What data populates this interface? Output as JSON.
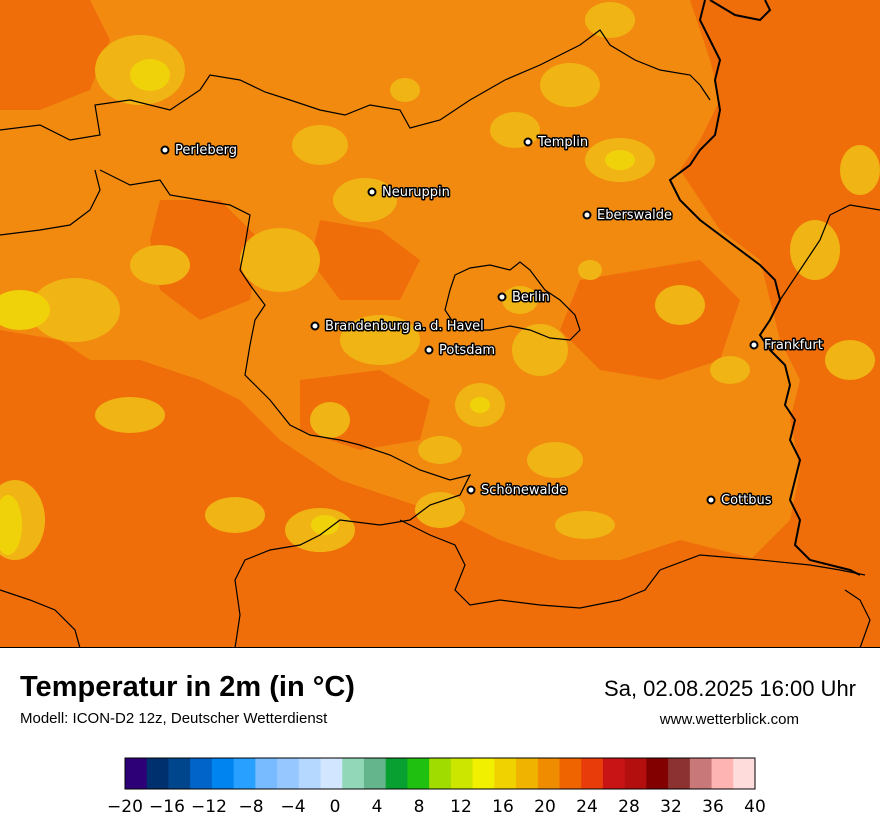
{
  "title": "Temperatur in 2m (in °C)",
  "subtitle": "Modell: ICON-D2 12z, Deutscher Wetterdienst",
  "datetime": "Sa, 02.08.2025 16:00 Uhr",
  "website": "www.wetterblick.com",
  "cities": [
    {
      "name": "Perleberg"
    },
    {
      "name": "Templin"
    },
    {
      "name": "Neuruppin"
    },
    {
      "name": "Eberswalde"
    },
    {
      "name": "Berlin"
    },
    {
      "name": "Brandenburg a. d. Havel"
    },
    {
      "name": "Potsdam"
    },
    {
      "name": "Frankfurt"
    },
    {
      "name": "Schönewalde"
    },
    {
      "name": "Cottbus"
    }
  ],
  "legend": {
    "min": -20,
    "max": 40,
    "step": 2,
    "tick_labels": [
      "−20",
      "−16",
      "−12",
      "−8",
      "−4",
      "0",
      "4",
      "8",
      "12",
      "16",
      "20",
      "24",
      "28",
      "32",
      "36",
      "40"
    ],
    "colors": [
      "#2e0078",
      "#00306e",
      "#00468c",
      "#0064c8",
      "#0084f0",
      "#28a0ff",
      "#78bcff",
      "#96c8ff",
      "#b4d8ff",
      "#d2e6ff",
      "#92d8b8",
      "#64b48c",
      "#08a030",
      "#20c010",
      "#a0dc00",
      "#cce600",
      "#f0f000",
      "#f0d200",
      "#f0b400",
      "#f08c00",
      "#f06400",
      "#e83c0a",
      "#c81414",
      "#b40f0f",
      "#820000",
      "#8c3232",
      "#c87878",
      "#ffb4b4",
      "#ffdcdc"
    ]
  },
  "map_colors": {
    "base": "#f28a10",
    "warm": "#f06e0a",
    "cool": "#f0b414",
    "coolest": "#f0d20a",
    "border": "#000000"
  }
}
